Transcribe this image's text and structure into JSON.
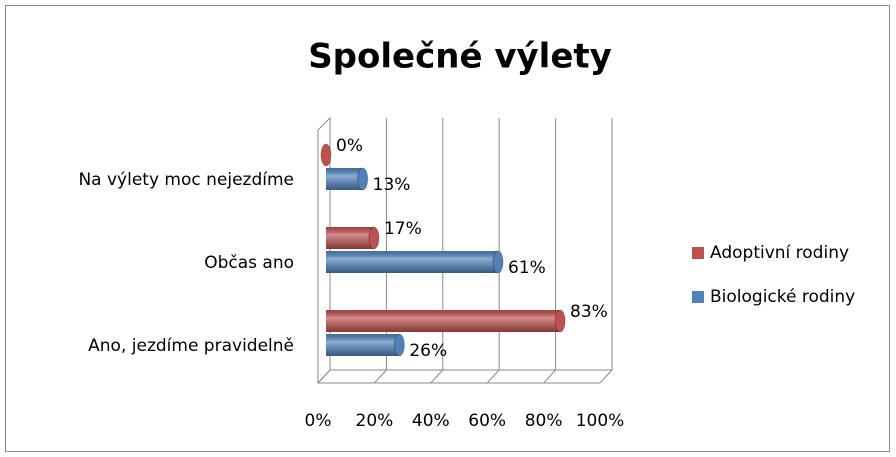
{
  "chart_data": {
    "type": "bar",
    "orientation": "horizontal",
    "title": "Společné výlety",
    "categories": [
      "Na výlety moc nejezdíme",
      "Občas ano",
      "Ano, jezdíme pravidelně"
    ],
    "series": [
      {
        "name": "Adoptivní rodiny",
        "color": "#c0504d",
        "values": [
          0,
          17,
          83
        ],
        "value_labels": [
          "0%",
          "17%",
          "83%"
        ]
      },
      {
        "name": "Biologické rodiny",
        "color": "#4f81bd",
        "values": [
          13,
          61,
          26
        ],
        "value_labels": [
          "13%",
          "61%",
          "26%"
        ]
      }
    ],
    "xlim": [
      0,
      100
    ],
    "xticks": [
      {
        "value": 0,
        "label": "0%"
      },
      {
        "value": 20,
        "label": "20%"
      },
      {
        "value": 40,
        "label": "40%"
      },
      {
        "value": 60,
        "label": "60%"
      },
      {
        "value": 80,
        "label": "80%"
      },
      {
        "value": 100,
        "label": "100%"
      }
    ],
    "grid": true,
    "legend": "right"
  }
}
